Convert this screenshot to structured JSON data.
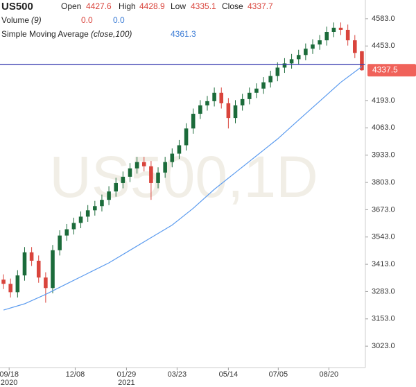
{
  "chart_data": {
    "type": "candlestick",
    "header": {
      "symbol": "US500",
      "open_label": "Open",
      "open": "4427.6",
      "high_label": "High",
      "high": "4428.9",
      "low_label": "Low",
      "low": "4335.1",
      "close_label": "Close",
      "close": "4337.7",
      "volume_label": "Volume",
      "volume_param": "(9)",
      "volume_a": "0.0",
      "volume_b": "0.0",
      "sma_label": "Simple Moving Average",
      "sma_param": "(close,100)",
      "sma_value": "4361.3"
    },
    "watermark": "US500,1D",
    "price_tag": 4337.5,
    "horizontal_line": 4365,
    "up_color": "#1b6b3a",
    "down_color": "#d9443c",
    "sma_color": "#5b9bef",
    "hline_color": "#3b3fb0",
    "tag_color": "#f0625a",
    "xlim": [
      -0.5,
      51.5
    ],
    "ylim": [
      2921,
      4672
    ],
    "xticks": [
      {
        "value": 0.8,
        "label": "09/18"
      },
      {
        "value": 10.2,
        "label": "12/08"
      },
      {
        "value": 17.5,
        "label": "01/29"
      },
      {
        "value": 24.7,
        "label": "03/23"
      },
      {
        "value": 32,
        "label": "05/14"
      },
      {
        "value": 39.1,
        "label": "07/05"
      },
      {
        "value": 46.3,
        "label": "08/20"
      }
    ],
    "year_labels": [
      {
        "value": 0.8,
        "label": "2020"
      },
      {
        "value": 17.5,
        "label": "2021"
      }
    ],
    "yticks": [
      {
        "value": 3023,
        "label": "3023.0"
      },
      {
        "value": 3153,
        "label": "3153.0"
      },
      {
        "value": 3283,
        "label": "3283.0"
      },
      {
        "value": 3413,
        "label": "3413.0"
      },
      {
        "value": 3543,
        "label": "3543.0"
      },
      {
        "value": 3673,
        "label": "3673.0"
      },
      {
        "value": 3803,
        "label": "3803.0"
      },
      {
        "value": 3933,
        "label": "3933.0"
      },
      {
        "value": 4063,
        "label": "4063.0"
      },
      {
        "value": 4193,
        "label": "4193.0"
      },
      {
        "value": 4453,
        "label": "4453.0"
      },
      {
        "value": 4583,
        "label": "4583.0"
      }
    ],
    "open": [
      3340,
      3320,
      3280,
      3360,
      3470,
      3430,
      3350,
      3300,
      3480,
      3550,
      3580,
      3610,
      3640,
      3670,
      3690,
      3720,
      3760,
      3800,
      3830,
      3870,
      3900,
      3880,
      3800,
      3850,
      3900,
      3940,
      3980,
      4060,
      4130,
      4170,
      4190,
      4230,
      4180,
      4110,
      4170,
      4200,
      4230,
      4250,
      4280,
      4310,
      4350,
      4370,
      4390,
      4410,
      4440,
      4460,
      4480,
      4520,
      4540,
      4530,
      4480,
      4427.6
    ],
    "high": [
      3365,
      3345,
      3385,
      3495,
      3495,
      3455,
      3375,
      3505,
      3575,
      3605,
      3635,
      3665,
      3695,
      3715,
      3745,
      3785,
      3825,
      3855,
      3895,
      3925,
      3925,
      3905,
      3875,
      3925,
      3965,
      4005,
      4085,
      4155,
      4195,
      4215,
      4255,
      4255,
      4205,
      4195,
      4225,
      4255,
      4275,
      4305,
      4335,
      4375,
      4395,
      4415,
      4435,
      4465,
      4485,
      4505,
      4545,
      4565,
      4565,
      4555,
      4505,
      4428.9
    ],
    "low": [
      3295,
      3255,
      3255,
      3335,
      3405,
      3325,
      3230,
      3275,
      3455,
      3525,
      3555,
      3585,
      3615,
      3645,
      3665,
      3695,
      3735,
      3775,
      3805,
      3845,
      3855,
      3720,
      3775,
      3825,
      3875,
      3915,
      3955,
      4035,
      4105,
      4145,
      4165,
      4155,
      4060,
      4085,
      4145,
      4175,
      4205,
      4225,
      4255,
      4285,
      4325,
      4345,
      4365,
      4385,
      4415,
      4435,
      4455,
      4495,
      4505,
      4455,
      4395,
      4335.1
    ],
    "close": [
      3320,
      3280,
      3360,
      3470,
      3430,
      3350,
      3300,
      3480,
      3550,
      3580,
      3610,
      3640,
      3670,
      3690,
      3720,
      3760,
      3800,
      3830,
      3870,
      3900,
      3880,
      3800,
      3850,
      3900,
      3940,
      3980,
      4060,
      4130,
      4170,
      4190,
      4230,
      4180,
      4110,
      4170,
      4200,
      4230,
      4250,
      4280,
      4310,
      4350,
      4370,
      4390,
      4410,
      4440,
      4460,
      4480,
      4520,
      4540,
      4530,
      4480,
      4420,
      4337.7
    ],
    "sma_x": [
      0,
      3,
      6,
      9,
      12,
      15,
      18,
      21,
      24,
      27,
      30,
      33,
      36,
      39,
      42,
      45,
      48,
      51
    ],
    "sma": [
      3195,
      3225,
      3270,
      3320,
      3370,
      3420,
      3480,
      3540,
      3600,
      3680,
      3770,
      3850,
      3930,
      4010,
      4100,
      4190,
      4280,
      4355
    ]
  }
}
